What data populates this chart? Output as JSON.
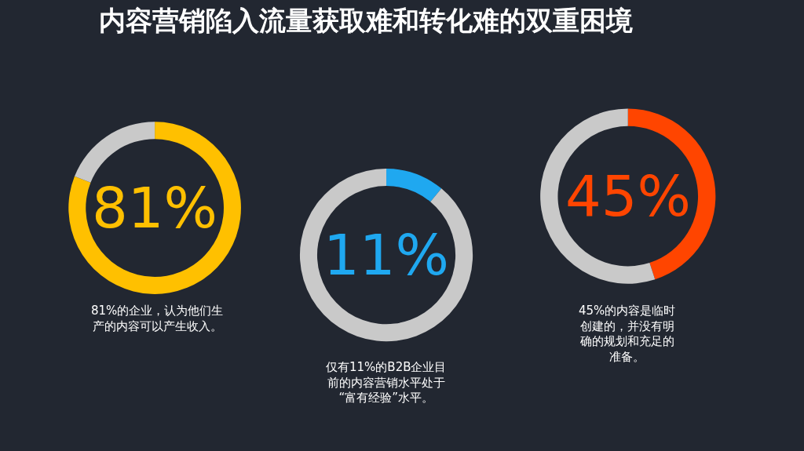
{
  "chart_data": [
    {
      "type": "donut",
      "title": "内容营销陷入流量获取难和转化难的双重困境",
      "categories": [
        null,
        null
      ],
      "values": [
        81,
        19
      ],
      "colors": [
        "#ffc000",
        "#c9c9c9"
      ],
      "value_labels": [
        "81%",
        null
      ],
      "annotations": [
        "81%的企业，认为他们生产的内容可以产生收入。"
      ]
    },
    {
      "type": "donut",
      "categories": [
        null,
        null
      ],
      "values": [
        11,
        89
      ],
      "colors": [
        "#1fa8f0",
        "#c9c9c9"
      ],
      "value_labels": [
        "11%",
        null
      ],
      "annotations": [
        "仅有11%的B2B企业目前的内容营销水平处于“富有经验”水平。"
      ]
    },
    {
      "type": "donut",
      "categories": [
        null,
        null
      ],
      "values": [
        45,
        55
      ],
      "colors": [
        "#ff4500",
        "#c9c9c9"
      ],
      "value_labels": [
        "45%",
        null
      ],
      "annotations": [
        "45%的内容是临时创建的，并没有明确的规划和充足的准备。"
      ]
    }
  ]
}
